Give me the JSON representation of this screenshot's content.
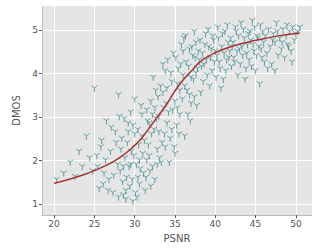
{
  "chart_data": {
    "type": "scatter",
    "x_label": "PSNR",
    "y_label": "DMOS",
    "xlim": [
      18.5,
      52
    ],
    "ylim": [
      0.75,
      5.55
    ],
    "xticks": [
      20,
      25,
      30,
      35,
      40,
      45,
      50
    ],
    "yticks": [
      1,
      2,
      3,
      4,
      5
    ],
    "grid": true,
    "series": [
      {
        "type": "scatter",
        "color": "#2e8585",
        "marker": "tri_down",
        "x": [
          20.3,
          21.2,
          22.0,
          22.6,
          23.1,
          23.5,
          24.0,
          24.4,
          24.8,
          25.0,
          25.3,
          25.6,
          25.9,
          26.2,
          26.5,
          26.8,
          27.0,
          27.3,
          27.6,
          27.9,
          25.4,
          25.8,
          26.1,
          26.4,
          26.7,
          27.1,
          27.4,
          27.7,
          28.0,
          28.0,
          28.2,
          28.4,
          28.6,
          28.8,
          29.0,
          29.2,
          29.4,
          29.6,
          29.8,
          30.0,
          28.3,
          28.5,
          28.7,
          28.9,
          29.1,
          29.3,
          29.5,
          29.7,
          29.9,
          30.1,
          30.2,
          30.4,
          30.6,
          30.8,
          31.0,
          30.3,
          30.5,
          30.7,
          30.9,
          31.1,
          28.1,
          28.9,
          29.5,
          30.0,
          30.6,
          29.2,
          28.6,
          30.9,
          29.8,
          30.4,
          31.2,
          31.4,
          31.6,
          31.8,
          32.0,
          32.2,
          32.4,
          32.6,
          32.8,
          33.0,
          31.3,
          31.5,
          31.7,
          31.9,
          32.1,
          32.3,
          32.5,
          32.7,
          32.9,
          33.1,
          33.2,
          33.4,
          33.6,
          33.8,
          34.0,
          33.3,
          33.5,
          33.7,
          33.9,
          34.1,
          31.5,
          32.0,
          32.5,
          33.0,
          33.5,
          34.0,
          31.8,
          32.8,
          33.8,
          32.2,
          34.2,
          34.4,
          34.6,
          34.8,
          35.0,
          35.2,
          35.4,
          35.6,
          35.8,
          36.0,
          34.3,
          34.5,
          34.7,
          34.9,
          35.1,
          35.3,
          35.5,
          35.7,
          35.9,
          36.1,
          36.2,
          36.4,
          36.6,
          36.8,
          37.0,
          37.2,
          37.4,
          37.6,
          37.8,
          38.0,
          36.3,
          36.5,
          36.7,
          36.9,
          37.1,
          37.3,
          37.5,
          37.7,
          37.9,
          38.1,
          35.0,
          35.6,
          36.2,
          36.8,
          37.4,
          34.6,
          35.3,
          36.0,
          37.0,
          37.6,
          38.2,
          38.4,
          38.6,
          38.8,
          39.0,
          39.2,
          39.4,
          39.6,
          39.8,
          40.0,
          38.3,
          38.5,
          38.7,
          38.9,
          39.1,
          39.3,
          39.5,
          39.7,
          39.9,
          40.1,
          40.2,
          40.4,
          40.6,
          40.8,
          41.0,
          41.2,
          41.4,
          41.6,
          41.8,
          42.0,
          40.3,
          40.5,
          40.7,
          40.9,
          41.1,
          41.3,
          41.5,
          41.7,
          41.9,
          42.1,
          42.2,
          42.4,
          42.6,
          42.8,
          43.0,
          43.2,
          43.4,
          43.6,
          43.8,
          44.0,
          42.3,
          42.5,
          42.7,
          42.9,
          43.1,
          43.3,
          43.5,
          43.7,
          43.9,
          44.1,
          44.2,
          44.4,
          44.6,
          44.8,
          45.0,
          45.2,
          45.4,
          45.6,
          45.8,
          46.0,
          44.3,
          44.5,
          44.7,
          44.9,
          45.1,
          45.3,
          45.5,
          45.7,
          45.9,
          46.1,
          46.2,
          46.4,
          46.6,
          46.8,
          47.0,
          47.2,
          47.4,
          47.6,
          47.8,
          48.0,
          48.2,
          48.4,
          48.6,
          48.8,
          49.0,
          49.2,
          49.4,
          49.6,
          49.8,
          50.0,
          46.5,
          47.1,
          47.7,
          48.3,
          48.9,
          49.5,
          50.2,
          50.5,
          47.4,
          49.1
        ],
        "values": [
          1.55,
          1.7,
          1.95,
          1.62,
          2.2,
          1.85,
          2.55,
          2.05,
          1.75,
          3.65,
          2.1,
          1.35,
          2.45,
          1.7,
          2.9,
          1.55,
          2.2,
          1.25,
          2.65,
          1.9,
          1.85,
          2.3,
          1.45,
          2.0,
          1.3,
          2.75,
          1.65,
          2.4,
          1.15,
          3.5,
          1.75,
          2.5,
          1.2,
          2.05,
          1.6,
          2.85,
          1.4,
          2.2,
          1.05,
          2.6,
          2.25,
          1.5,
          2.95,
          1.3,
          2.4,
          1.85,
          3.1,
          1.55,
          2.1,
          1.25,
          1.9,
          2.7,
          1.45,
          3.25,
          2.15,
          1.15,
          2.35,
          1.8,
          2.55,
          1.7,
          3.0,
          1.1,
          1.9,
          3.4,
          2.0,
          2.65,
          1.85,
          3.05,
          2.8,
          1.6,
          2.45,
          1.6,
          2.9,
          2.1,
          3.35,
          1.85,
          2.7,
          3.6,
          2.25,
          3.0,
          1.3,
          3.15,
          2.35,
          1.75,
          2.6,
          3.9,
          1.55,
          2.95,
          3.45,
          2.05,
          3.7,
          2.4,
          3.2,
          4.05,
          2.85,
          1.95,
          3.55,
          2.6,
          3.3,
          4.3,
          2.0,
          1.4,
          3.2,
          2.65,
          4.2,
          3.65,
          2.85,
          1.9,
          2.3,
          3.05,
          3.1,
          2.5,
          3.8,
          4.45,
          3.35,
          2.8,
          4.1,
          3.6,
          4.65,
          3.95,
          1.95,
          4.0,
          3.15,
          2.3,
          4.35,
          3.75,
          2.6,
          4.2,
          3.4,
          4.8,
          3.7,
          4.25,
          3.05,
          4.55,
          3.9,
          4.4,
          3.45,
          4.7,
          4.1,
          4.3,
          4.85,
          3.6,
          4.15,
          2.9,
          4.6,
          3.85,
          4.35,
          3.25,
          4.5,
          4.75,
          2.15,
          3.05,
          2.55,
          3.5,
          4.95,
          2.7,
          3.2,
          4.5,
          3.3,
          4.0,
          3.55,
          4.45,
          4.2,
          4.9,
          3.95,
          4.6,
          4.35,
          4.05,
          4.75,
          4.5,
          4.15,
          3.8,
          4.65,
          4.3,
          5.0,
          3.7,
          4.55,
          4.85,
          4.25,
          3.9,
          4.4,
          4.8,
          4.1,
          4.6,
          3.85,
          4.95,
          4.3,
          4.7,
          4.5,
          4.15,
          5.05,
          4.25,
          3.65,
          4.9,
          4.45,
          4.05,
          5.1,
          4.35,
          4.8,
          4.6,
          4.7,
          4.25,
          4.95,
          3.95,
          4.55,
          5.15,
          4.4,
          4.8,
          4.1,
          4.65,
          4.35,
          5.05,
          4.5,
          4.85,
          4.2,
          4.6,
          5.0,
          3.85,
          4.45,
          4.9,
          4.3,
          4.75,
          5.2,
          4.5,
          4.05,
          4.85,
          4.6,
          5.1,
          4.35,
          4.7,
          4.95,
          4.15,
          4.65,
          5.05,
          4.4,
          4.8,
          3.75,
          4.55,
          4.95,
          4.25,
          4.85,
          4.45,
          5.0,
          4.6,
          4.2,
          4.9,
          4.7,
          5.15,
          4.4,
          4.8,
          4.55,
          5.0,
          4.35,
          4.85,
          4.65,
          4.95,
          4.5,
          5.05,
          4.75,
          4.9,
          4.1,
          4.75,
          4.95,
          4.7,
          5.1,
          4.25,
          4.95,
          5.05,
          4.05,
          4.6
        ]
      },
      {
        "type": "line",
        "color": "#a83232",
        "line_style": "solid",
        "x": [
          20,
          22,
          24,
          26,
          28,
          30,
          31,
          32,
          33,
          34,
          35,
          36,
          37,
          38,
          39,
          40,
          42,
          44,
          46,
          48,
          50.5
        ],
        "values": [
          1.48,
          1.58,
          1.7,
          1.85,
          2.05,
          2.35,
          2.55,
          2.8,
          3.05,
          3.3,
          3.6,
          3.85,
          4.05,
          4.25,
          4.38,
          4.48,
          4.62,
          4.72,
          4.8,
          4.87,
          4.93
        ]
      }
    ]
  }
}
